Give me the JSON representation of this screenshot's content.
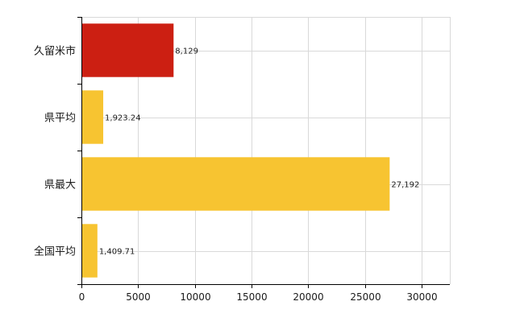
{
  "chart_data": {
    "type": "bar",
    "orientation": "horizontal",
    "categories": [
      "久留米市",
      "県平均",
      "県最大",
      "全国平均"
    ],
    "values": [
      8129,
      1923.24,
      27192,
      1409.71
    ],
    "value_labels": [
      "8,129",
      "1,923.24",
      "27,192",
      "1,409.71"
    ],
    "bar_colors": [
      "#cc1f12",
      "#f7c431",
      "#f7c431",
      "#f7c431"
    ],
    "xlim": [
      0,
      32500
    ],
    "x_ticks": [
      0,
      5000,
      10000,
      15000,
      20000,
      25000,
      30000
    ],
    "x_tick_labels": [
      "0",
      "5000",
      "10000",
      "15000",
      "20000",
      "25000",
      "30000"
    ],
    "grid": true,
    "legend": "none",
    "title": "",
    "xlabel": "",
    "ylabel": ""
  }
}
